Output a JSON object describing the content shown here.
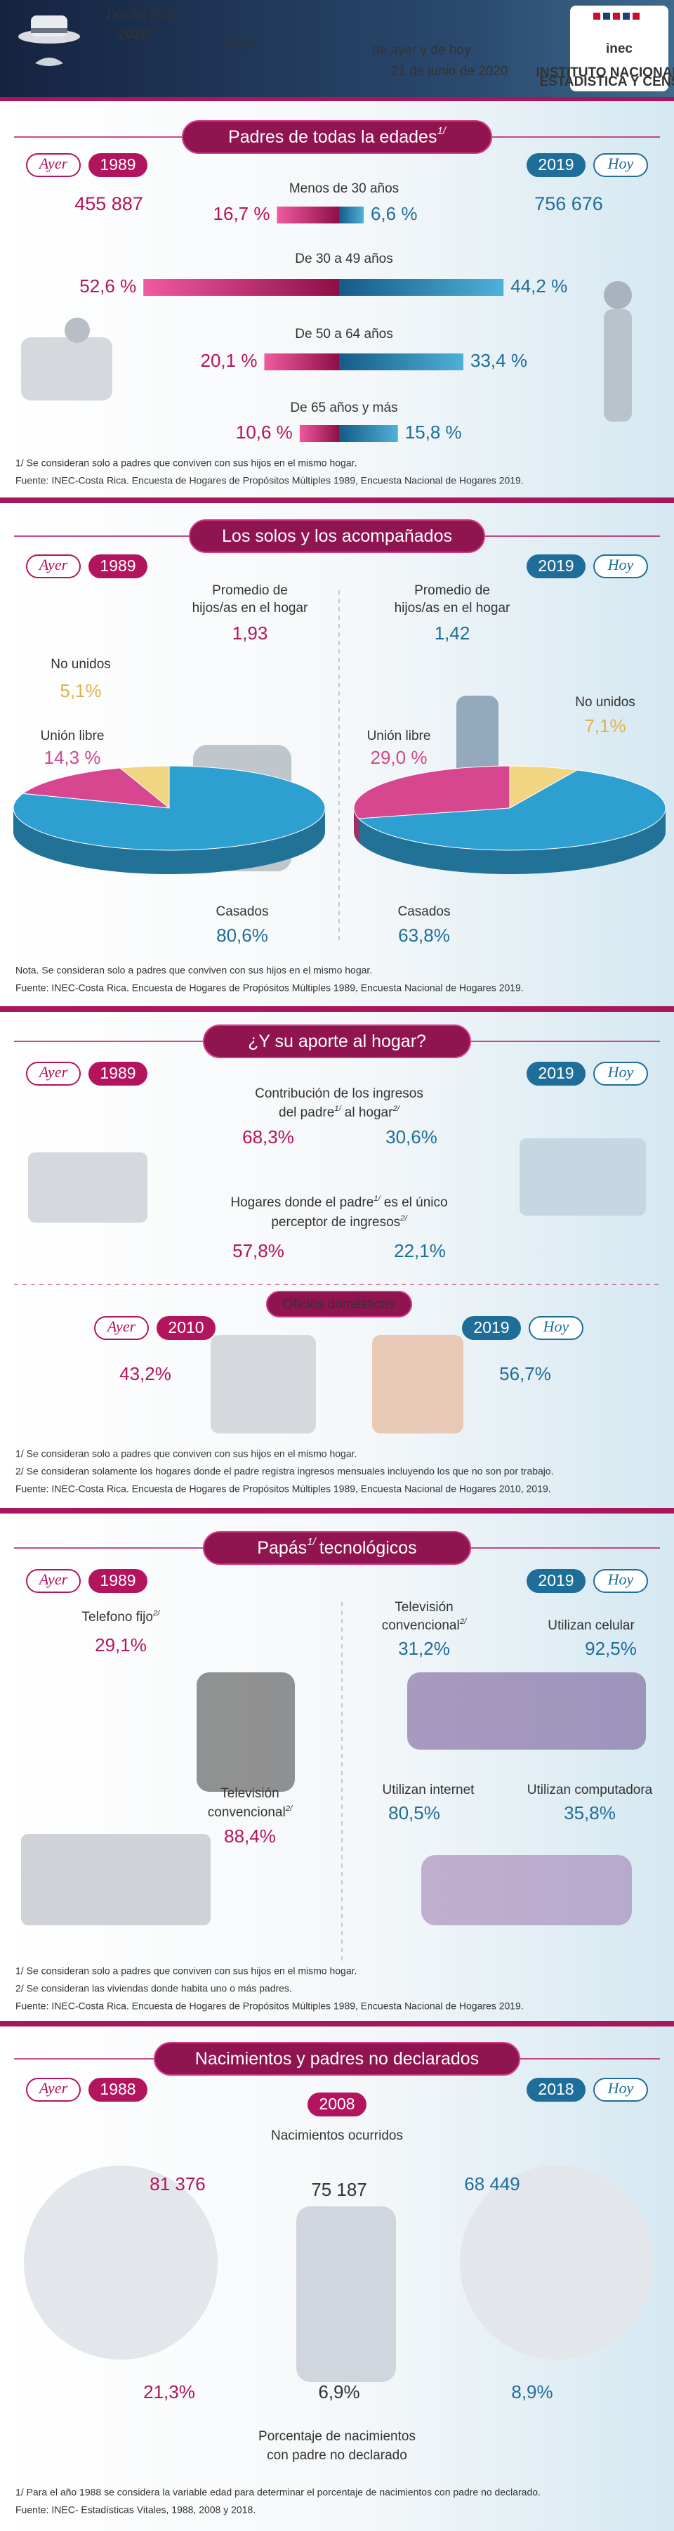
{
  "header": {
    "tagline": "Día del Padre",
    "year": "2020",
    "title": "Papás",
    "subtitle": "de ayer y de hoy",
    "date": "21 de junio de 2020",
    "logo": "inec",
    "logo_name": [
      "INSTITUTO NACIONAL DE",
      "ESTADÍSTICA Y CENSOS"
    ]
  },
  "ages": {
    "title": "Padres de todas la edades",
    "title_note": "1/",
    "left": {
      "tag": "Ayer",
      "year": "1989",
      "total": "455 887"
    },
    "right": {
      "tag": "Hoy",
      "year": "2019",
      "total": "756 676"
    },
    "groups": [
      {
        "label": "Menos de 30 años",
        "values": [
          16.7,
          6.6
        ],
        "value_labels": [
          "16,7 %",
          "6,6 %"
        ]
      },
      {
        "label": "De 30 a 49 años",
        "values": [
          52.6,
          44.2
        ],
        "value_labels": [
          "52,6 %",
          "44,2 %"
        ]
      },
      {
        "label": "De 50 a 64 años",
        "values": [
          20.1,
          33.4
        ],
        "value_labels": [
          "20,1 %",
          "33,4 %"
        ]
      },
      {
        "label": "De 65 años y más",
        "values": [
          10.6,
          15.8
        ],
        "value_labels": [
          "10,6 %",
          "15,8 %"
        ]
      }
    ],
    "notes": [
      "1/ Se consideran solo a padres que conviven con sus hijos en el mismo hogar.",
      "Fuente:  INEC-Costa Rica. Encuesta de Hogares de Propósitos Múltiples 1989, Encuesta Nacional de Hogares 2019."
    ]
  },
  "households": {
    "title": "Los solos y los acompañados",
    "colors": [
      "#2e9fd1",
      "#d6478f",
      "#f1d583"
    ],
    "left": {
      "tag": "Ayer",
      "year": "1989",
      "children_label": [
        "Promedio de",
        "hijos/as en el hogar"
      ],
      "children": "1,93",
      "categories": [
        "Casados",
        "Unión libre",
        "No unidos"
      ],
      "values": [
        80.6,
        14.3,
        5.1
      ],
      "value_labels": [
        "80,6%",
        "14,3 %",
        "5,1%"
      ]
    },
    "right": {
      "tag": "Hoy",
      "year": "2019",
      "children_label": [
        "Promedio de",
        "hijos/as en el hogar"
      ],
      "children": "1,42",
      "categories": [
        "Casados",
        "Unión libre",
        "No unidos"
      ],
      "values": [
        63.8,
        29.0,
        7.1
      ],
      "value_labels": [
        "63,8%",
        "29,0 %",
        "7,1%"
      ]
    },
    "notes": [
      "Nota. Se consideran solo a padres que conviven con sus hijos en el mismo hogar.",
      "Fuente:  INEC-Costa Rica. Encuesta de Hogares de Propósitos Múltiples 1989, Encuesta Nacional de Hogares 2019."
    ]
  },
  "income": {
    "title": "¿Y su aporte al hogar?",
    "left": {
      "tag": "Ayer",
      "year": "1989"
    },
    "right": {
      "tag": "Hoy",
      "year": "2019"
    },
    "contribution": {
      "line1": "Contribución de los ingresos",
      "line2": [
        "del padre",
        "1/",
        "al hogar",
        "2/"
      ],
      "values": [
        "68,3%",
        "30,6%"
      ]
    },
    "sole_earner": {
      "line1": [
        "Hogares donde el padre",
        "1/",
        "es el único"
      ],
      "line2": [
        "perceptor de ingresos",
        "2/"
      ],
      "values": [
        "57,8%",
        "22,1%"
      ]
    },
    "chores": {
      "title": "Oficios domésticos",
      "left": {
        "tag": "Ayer",
        "year": "2010",
        "value": "43,2%"
      },
      "right": {
        "tag": "Hoy",
        "year": "2019",
        "value": "56,7%"
      }
    },
    "notes": [
      "1/ Se consideran solo a padres que conviven con sus hijos en el mismo hogar.",
      "2/ Se consideran solamente los hogares donde el padre registra ingresos mensuales incluyendo los que no son por trabajo.",
      "Fuente: INEC-Costa Rica. Encuesta de Hogares de Propósitos Múltiples 1989, Encuesta Nacional de Hogares 2010, 2019."
    ]
  },
  "tech": {
    "title": [
      "Papás",
      "1/",
      "tecnológicos"
    ],
    "left": {
      "tag": "Ayer",
      "year": "1989",
      "items": [
        {
          "label": [
            "Telefono fijo",
            "2/"
          ],
          "value": "29,1%"
        },
        {
          "label": [
            "Televisión",
            "convencional",
            "2/"
          ],
          "value": "88,4%"
        }
      ]
    },
    "right": {
      "tag": "Hoy",
      "year": "2019",
      "items": [
        {
          "label": [
            "Televisión",
            "convencional",
            "2/"
          ],
          "value": "31,2%"
        },
        {
          "label": [
            "Utilizan celular"
          ],
          "value": "92,5%"
        },
        {
          "label": [
            "Utilizan internet"
          ],
          "value": "80,5%"
        },
        {
          "label": [
            "Utilizan computadora"
          ],
          "value": "35,8%"
        }
      ]
    },
    "notes": [
      "1/ Se consideran solo a padres que conviven con sus hijos en el mismo hogar.",
      "2/ Se consideran las viviendas donde habita uno o más padres.",
      "Fuente:  INEC-Costa Rica. Encuesta de Hogares de Propósitos Múltiples 1989, Encuesta Nacional de Hogares 2019."
    ]
  },
  "births": {
    "title": "Nacimientos y padres no declarados",
    "births_label": "Nacimientos ocurridos",
    "undeclared_label": [
      "Porcentaje de nacimientos",
      "con padre no declarado"
    ],
    "years": [
      {
        "tag": "Ayer",
        "year": "1988",
        "births": "81 376",
        "undeclared": "21,3%"
      },
      {
        "year": "2008",
        "births": "75 187",
        "undeclared": "6,9%"
      },
      {
        "tag": "Hoy",
        "year": "2018",
        "births": "68 449",
        "undeclared": "8,9%"
      }
    ],
    "notes": [
      "1/ Para el año 1988 se considera la variable edad para determinar el porcentaje de nacimientos con padre no declarado.",
      "Fuente: INEC- Estadísticas Vitales, 1988, 2008 y 2018."
    ]
  }
}
